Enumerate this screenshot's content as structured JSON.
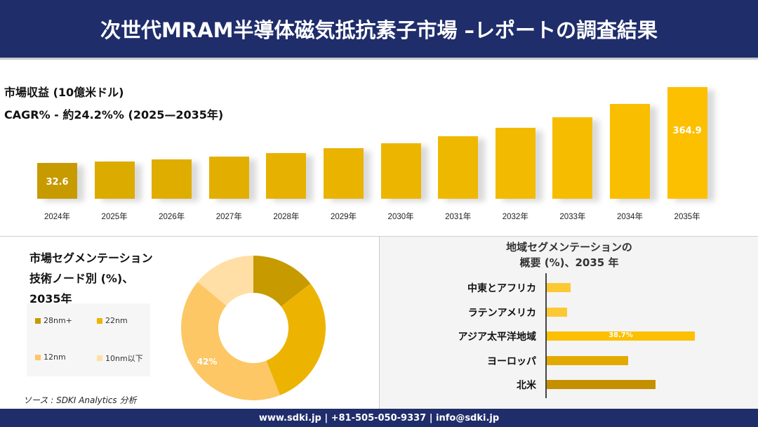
{
  "header": {
    "title": "次世代MRAM半導体磁気抵抗素子市場 –レポートの調査結果"
  },
  "chart_data": [
    {
      "type": "bar",
      "title": "市場収益 (10億米ドル)",
      "subtitle": "CAGR% - 約24.2%% (2025—2035年)",
      "categories": [
        "2024年",
        "2025年",
        "2026年",
        "2027年",
        "2028年",
        "2029年",
        "2030年",
        "2031年",
        "2032年",
        "2033年",
        "2034年",
        "2035年"
      ],
      "values": [
        32.6,
        40.6,
        50.5,
        62.9,
        78.3,
        97.5,
        121.3,
        151.0,
        188.0,
        234.0,
        291.3,
        364.9
      ],
      "data_labels": {
        "0": "32.6",
        "11": "364.9"
      },
      "colors": {
        "first": "#c79a00",
        "start": "#dcab00",
        "end": "#fcc000"
      }
    },
    {
      "type": "pie",
      "title": "市場セグメンテーション 技術ノード別 (%)、 2035年",
      "title_lines": [
        "市場セグメンテーション",
        "技術ノード別 (%)、",
        "2035年"
      ],
      "categories": [
        "28nm+",
        "22nm",
        "12nm",
        "10nm以下"
      ],
      "values": [
        14.5,
        29.5,
        42,
        14
      ],
      "colors": [
        "#c79a00",
        "#ecb400",
        "#fdc766",
        "#ffdfa6"
      ],
      "data_labels": {
        "2": "42%"
      },
      "donut": true
    },
    {
      "type": "bar",
      "orientation": "horizontal",
      "title": "地域セグメンテーションの 概要 (%)、2035 年",
      "title_lines": [
        "地域セグメンテーションの",
        "概要 (%)、2035 年"
      ],
      "categories": [
        "中東とアフリカ",
        "ラテンアメリカ",
        "アジア太平洋地域",
        "ヨーロッパ",
        "北米"
      ],
      "values": [
        6.2,
        5.3,
        38.7,
        21.3,
        28.4
      ],
      "colors": [
        "#fdc933",
        "#fdc933",
        "#fcc000",
        "#e2aa00",
        "#c49000"
      ],
      "data_labels": {
        "2": "38.7%"
      }
    }
  ],
  "source": "ソース : SDKI Analytics 分析",
  "footer": "www.sdki.jp | +81-505-050-9337 | info@sdki.jp"
}
